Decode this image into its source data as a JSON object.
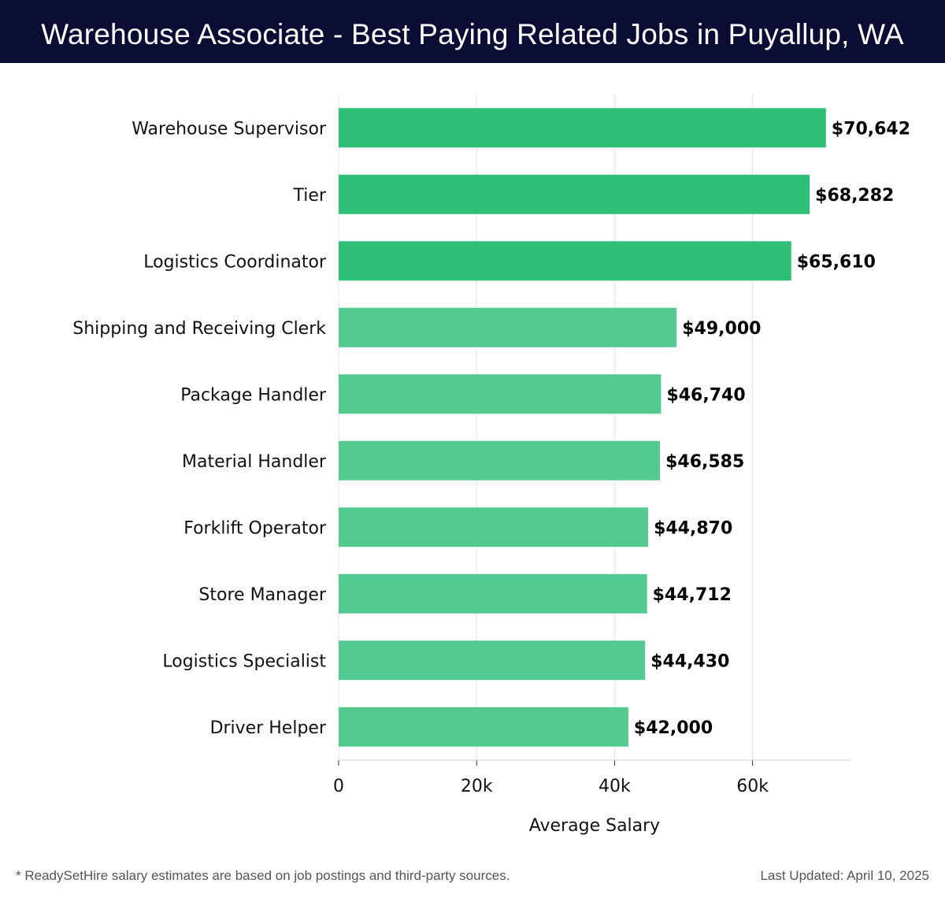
{
  "header": {
    "title": "Warehouse Associate - Best Paying Related Jobs in Puyallup, WA"
  },
  "footer": {
    "note": "* ReadySetHire salary estimates are based on job postings and third-party sources.",
    "updated": "Last Updated: April 10, 2025"
  },
  "colors": {
    "title_bg": "#0b0d35",
    "bar_top": "#2ebf78",
    "bar_rest": "#54c990",
    "grid": "#e3e3e3"
  },
  "chart_data": {
    "type": "bar",
    "orientation": "horizontal",
    "categories": [
      "Warehouse Supervisor",
      "Tier",
      "Logistics Coordinator",
      "Shipping and Receiving Clerk",
      "Package Handler",
      "Material Handler",
      "Forklift Operator",
      "Store Manager",
      "Logistics Specialist",
      "Driver Helper"
    ],
    "values": [
      70642,
      68282,
      65610,
      49000,
      46740,
      46585,
      44870,
      44712,
      44430,
      42000
    ],
    "value_labels": [
      "$70,642",
      "$68,282",
      "$65,610",
      "$49,000",
      "$46,740",
      "$46,585",
      "$44,870",
      "$44,712",
      "$44,430",
      "$42,000"
    ],
    "xlabel": "Average Salary",
    "xticks": [
      0,
      20000,
      40000,
      60000
    ],
    "xtick_labels": [
      "0",
      "20k",
      "40k",
      "60k"
    ],
    "xlim": [
      0,
      74200
    ],
    "grid": true,
    "highlighted_top": 3
  }
}
